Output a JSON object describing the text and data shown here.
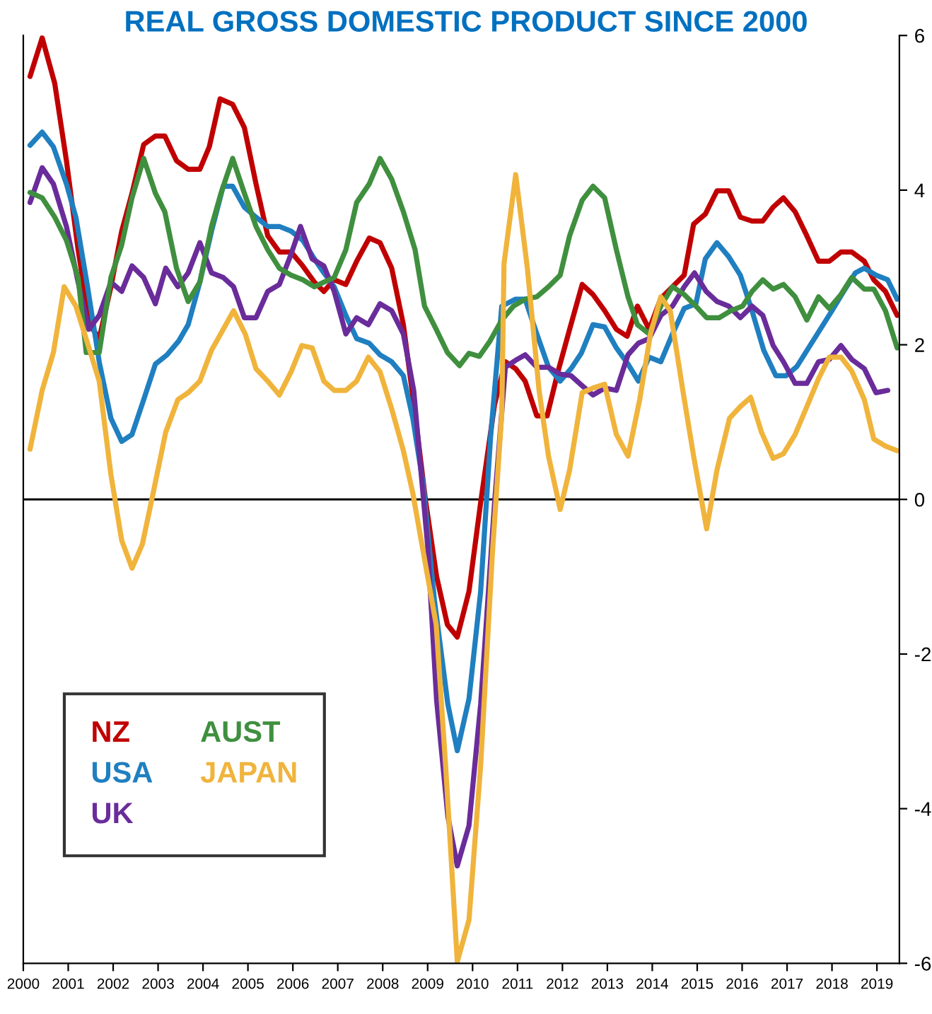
{
  "chart_data": {
    "type": "line",
    "title": "REAL GROSS DOMESTIC PRODUCT SINCE 2000",
    "xlim": [
      2000,
      2019.5
    ],
    "xticks": [
      2000,
      2001,
      2002,
      2003,
      2004,
      2005,
      2006,
      2007,
      2008,
      2009,
      2010,
      2011,
      2012,
      2013,
      2014,
      2015,
      2016,
      2017,
      2018,
      2019
    ],
    "ylim": [
      -6,
      6
    ],
    "yticks": [
      -6,
      -4,
      -2,
      0,
      2,
      4,
      6
    ],
    "grid": false,
    "legend": "bottom left",
    "ref_lines": [
      {
        "axis": "y",
        "value": 0,
        "color": "#000000"
      }
    ],
    "series": [
      {
        "name": "NZ",
        "color": "#c00000",
        "x": [
          2000.15,
          2000.42,
          2000.7,
          2000.96,
          2001.22,
          2001.48,
          2001.69,
          2001.95,
          2002.19,
          2002.42,
          2002.68,
          2002.94,
          2003.15,
          2003.41,
          2003.67,
          2003.93,
          2004.14,
          2004.38,
          2004.66,
          2004.92,
          2005.18,
          2005.44,
          2005.7,
          2005.96,
          2006.22,
          2006.48,
          2006.69,
          2006.92,
          2007.18,
          2007.42,
          2007.7,
          2007.94,
          2008.2,
          2008.46,
          2008.7,
          2008.95,
          2009.2,
          2009.44,
          2009.66,
          2009.92,
          2010.18,
          2010.49,
          2010.73,
          2010.96,
          2011.17,
          2011.43,
          2011.66,
          2011.9,
          2012.16,
          2012.44,
          2012.68,
          2012.94,
          2013.2,
          2013.44,
          2013.67,
          2013.93,
          2014.19,
          2014.45,
          2014.71,
          2014.92,
          2015.18,
          2015.44,
          2015.7,
          2015.96,
          2016.22,
          2016.46,
          2016.69,
          2016.92,
          2017.18,
          2017.44,
          2017.7,
          2017.94,
          2018.2,
          2018.44,
          2018.72,
          2018.93,
          2019.19,
          2019.45
        ],
        "values": [
          5.47,
          5.97,
          5.38,
          4.38,
          3.23,
          2.26,
          2.08,
          2.75,
          3.47,
          3.96,
          4.59,
          4.7,
          4.7,
          4.38,
          4.27,
          4.27,
          4.56,
          5.18,
          5.11,
          4.81,
          4.08,
          3.41,
          3.2,
          3.2,
          3.02,
          2.81,
          2.69,
          2.84,
          2.78,
          3.08,
          3.38,
          3.32,
          2.99,
          2.26,
          1.2,
          0,
          -1.0,
          -1.62,
          -1.78,
          -1.19,
          -0.04,
          1.23,
          1.78,
          1.69,
          1.53,
          1.08,
          1.08,
          1.65,
          2.2,
          2.78,
          2.65,
          2.44,
          2.2,
          2.11,
          2.5,
          2.2,
          2.6,
          2.75,
          2.9,
          3.56,
          3.69,
          3.99,
          3.99,
          3.65,
          3.6,
          3.6,
          3.78,
          3.9,
          3.72,
          3.41,
          3.08,
          3.08,
          3.2,
          3.2,
          3.08,
          2.84,
          2.69,
          2.38
        ]
      },
      {
        "name": "USA",
        "color": "#1f7fc0",
        "x": [
          2000.15,
          2000.42,
          2000.67,
          2000.96,
          2001.17,
          2001.43,
          2001.69,
          2001.95,
          2002.19,
          2002.42,
          2002.68,
          2002.94,
          2003.2,
          2003.46,
          2003.67,
          2003.93,
          2004.19,
          2004.45,
          2004.66,
          2004.92,
          2005.18,
          2005.44,
          2005.7,
          2005.96,
          2006.22,
          2006.48,
          2006.69,
          2006.92,
          2007.18,
          2007.42,
          2007.7,
          2007.94,
          2008.2,
          2008.46,
          2008.67,
          2008.9,
          2009.15,
          2009.45,
          2009.66,
          2009.92,
          2010.18,
          2010.4,
          2010.65,
          2010.96,
          2011.17,
          2011.43,
          2011.69,
          2011.95,
          2012.19,
          2012.42,
          2012.68,
          2012.94,
          2013.2,
          2013.46,
          2013.69,
          2013.93,
          2014.19,
          2014.45,
          2014.71,
          2014.97,
          2015.18,
          2015.44,
          2015.7,
          2015.96,
          2016.22,
          2016.48,
          2016.75,
          2016.98,
          2017.22,
          2017.48,
          2017.74,
          2018.0,
          2018.26,
          2018.52,
          2018.72,
          2018.98,
          2019.24,
          2019.45
        ],
        "values": [
          4.58,
          4.75,
          4.56,
          4.08,
          3.65,
          2.75,
          1.78,
          1.05,
          0.75,
          0.84,
          1.29,
          1.75,
          1.87,
          2.05,
          2.26,
          2.81,
          3.47,
          4.05,
          4.05,
          3.78,
          3.65,
          3.53,
          3.53,
          3.47,
          3.35,
          3.11,
          2.93,
          2.75,
          2.38,
          2.08,
          2.02,
          1.87,
          1.78,
          1.6,
          1.05,
          0.2,
          -1.3,
          -2.65,
          -3.25,
          -2.58,
          -1.19,
          0.8,
          2.5,
          2.59,
          2.59,
          2.14,
          1.71,
          1.53,
          1.69,
          1.89,
          2.26,
          2.23,
          1.96,
          1.75,
          1.53,
          1.84,
          1.78,
          2.14,
          2.47,
          2.53,
          3.11,
          3.32,
          3.14,
          2.9,
          2.44,
          1.93,
          1.6,
          1.6,
          1.72,
          1.96,
          2.2,
          2.44,
          2.69,
          2.93,
          2.99,
          2.9,
          2.84,
          2.59
        ]
      },
      {
        "name": "UK",
        "color": "#6a2c9a",
        "x": [
          2000.15,
          2000.42,
          2000.67,
          2000.96,
          2001.22,
          2001.46,
          2001.69,
          2001.95,
          2002.19,
          2002.42,
          2002.68,
          2002.94,
          2003.17,
          2003.44,
          2003.67,
          2003.93,
          2004.19,
          2004.45,
          2004.68,
          2004.92,
          2005.18,
          2005.44,
          2005.7,
          2005.96,
          2006.17,
          2006.43,
          2006.69,
          2006.92,
          2007.18,
          2007.42,
          2007.68,
          2007.94,
          2008.2,
          2008.46,
          2008.69,
          2009.0,
          2009.2,
          2009.45,
          2009.66,
          2009.92,
          2010.18,
          2010.49,
          2010.73,
          2010.96,
          2011.17,
          2011.43,
          2011.69,
          2011.95,
          2012.19,
          2012.44,
          2012.68,
          2012.94,
          2013.2,
          2013.46,
          2013.69,
          2013.93,
          2014.19,
          2014.45,
          2014.71,
          2014.94,
          2015.2,
          2015.44,
          2015.7,
          2015.96,
          2016.22,
          2016.46,
          2016.69,
          2016.92,
          2017.18,
          2017.44,
          2017.7,
          2017.94,
          2018.2,
          2018.44,
          2018.72,
          2018.98,
          2019.24
        ],
        "values": [
          3.84,
          4.29,
          4.08,
          3.53,
          2.81,
          2.2,
          2.38,
          2.81,
          2.69,
          3.02,
          2.87,
          2.53,
          2.99,
          2.75,
          2.93,
          3.32,
          2.93,
          2.87,
          2.75,
          2.35,
          2.35,
          2.69,
          2.78,
          3.17,
          3.53,
          3.11,
          3.02,
          2.69,
          2.14,
          2.35,
          2.26,
          2.53,
          2.44,
          2.14,
          1.41,
          -0.6,
          -2.6,
          -4.1,
          -4.74,
          -4.22,
          -2.65,
          -0.04,
          1.71,
          1.8,
          1.87,
          1.71,
          1.71,
          1.62,
          1.6,
          1.47,
          1.35,
          1.44,
          1.41,
          1.87,
          2.02,
          2.08,
          2.38,
          2.5,
          2.75,
          2.93,
          2.69,
          2.56,
          2.5,
          2.35,
          2.5,
          2.38,
          1.99,
          1.78,
          1.5,
          1.5,
          1.78,
          1.81,
          1.99,
          1.81,
          1.69,
          1.38,
          1.41
        ]
      },
      {
        "name": "AUST",
        "color": "#3f8f3f",
        "x": [
          2000.15,
          2000.42,
          2000.7,
          2000.96,
          2001.22,
          2001.4,
          2001.69,
          2001.95,
          2002.19,
          2002.42,
          2002.68,
          2002.94,
          2003.15,
          2003.41,
          2003.67,
          2003.93,
          2004.19,
          2004.4,
          2004.66,
          2004.92,
          2005.18,
          2005.44,
          2005.7,
          2005.96,
          2006.22,
          2006.48,
          2006.69,
          2006.92,
          2007.18,
          2007.42,
          2007.7,
          2007.94,
          2008.2,
          2008.46,
          2008.72,
          2008.93,
          2009.19,
          2009.44,
          2009.71,
          2009.92,
          2010.15,
          2010.39,
          2010.65,
          2010.91,
          2011.17,
          2011.43,
          2011.69,
          2011.95,
          2012.16,
          2012.44,
          2012.68,
          2012.94,
          2013.2,
          2013.46,
          2013.67,
          2013.93,
          2014.19,
          2014.45,
          2014.71,
          2014.97,
          2015.21,
          2015.49,
          2015.75,
          2016.01,
          2016.22,
          2016.46,
          2016.69,
          2016.92,
          2017.18,
          2017.44,
          2017.7,
          2017.94,
          2018.2,
          2018.44,
          2018.72,
          2018.93,
          2019.19,
          2019.45
        ],
        "values": [
          3.97,
          3.9,
          3.65,
          3.35,
          2.87,
          1.9,
          1.9,
          2.87,
          3.29,
          3.9,
          4.41,
          3.96,
          3.72,
          2.99,
          2.56,
          2.81,
          3.53,
          3.96,
          4.41,
          3.96,
          3.53,
          3.23,
          2.99,
          2.9,
          2.84,
          2.75,
          2.81,
          2.87,
          3.23,
          3.84,
          4.08,
          4.41,
          4.14,
          3.72,
          3.23,
          2.5,
          2.2,
          1.9,
          1.73,
          1.89,
          1.85,
          2.05,
          2.32,
          2.5,
          2.59,
          2.62,
          2.75,
          2.9,
          3.41,
          3.87,
          4.05,
          3.9,
          3.23,
          2.62,
          2.26,
          2.14,
          2.5,
          2.75,
          2.65,
          2.5,
          2.35,
          2.35,
          2.44,
          2.5,
          2.69,
          2.84,
          2.72,
          2.78,
          2.62,
          2.32,
          2.62,
          2.47,
          2.65,
          2.87,
          2.72,
          2.72,
          2.44,
          1.96
        ]
      },
      {
        "name": "JAPAN",
        "color": "#f0b43c",
        "x": [
          2000.15,
          2000.42,
          2000.67,
          2000.91,
          2001.17,
          2001.43,
          2001.69,
          2001.95,
          2002.19,
          2002.42,
          2002.65,
          2002.89,
          2003.17,
          2003.44,
          2003.67,
          2003.93,
          2004.19,
          2004.45,
          2004.68,
          2004.94,
          2005.18,
          2005.44,
          2005.7,
          2005.96,
          2006.2,
          2006.43,
          2006.69,
          2006.92,
          2007.18,
          2007.42,
          2007.68,
          2007.94,
          2008.2,
          2008.46,
          2008.67,
          2009.19,
          2009.4,
          2009.66,
          2009.92,
          2010.18,
          2010.44,
          2010.65,
          2010.7,
          2010.96,
          2011.22,
          2011.48,
          2011.69,
          2011.95,
          2012.16,
          2012.44,
          2012.68,
          2012.94,
          2013.2,
          2013.46,
          2013.72,
          2013.96,
          2014.19,
          2014.4,
          2014.68,
          2014.92,
          2015.21,
          2015.44,
          2015.72,
          2015.96,
          2016.19,
          2016.43,
          2016.69,
          2016.92,
          2017.18,
          2017.44,
          2017.7,
          2017.94,
          2018.2,
          2018.44,
          2018.72,
          2018.93,
          2019.19,
          2019.45
        ],
        "values": [
          0.65,
          1.41,
          1.9,
          2.75,
          2.5,
          2.02,
          1.53,
          0.32,
          -0.53,
          -0.89,
          -0.58,
          0.08,
          0.87,
          1.29,
          1.38,
          1.53,
          1.93,
          2.2,
          2.44,
          2.14,
          1.69,
          1.53,
          1.35,
          1.65,
          1.99,
          1.96,
          1.53,
          1.41,
          1.41,
          1.53,
          1.84,
          1.65,
          1.17,
          0.63,
          0.08,
          -1.62,
          -3.44,
          -5.98,
          -5.44,
          -3.44,
          -0.71,
          1.11,
          3.05,
          4.2,
          2.99,
          1.41,
          0.56,
          -0.13,
          0.38,
          1.38,
          1.44,
          1.49,
          0.84,
          0.56,
          1.29,
          2.14,
          2.62,
          2.44,
          1.41,
          0.56,
          -0.38,
          0.38,
          1.05,
          1.2,
          1.32,
          0.87,
          0.53,
          0.59,
          0.84,
          1.2,
          1.56,
          1.84,
          1.84,
          1.66,
          1.29,
          0.78,
          0.69,
          0.63
        ]
      }
    ]
  }
}
